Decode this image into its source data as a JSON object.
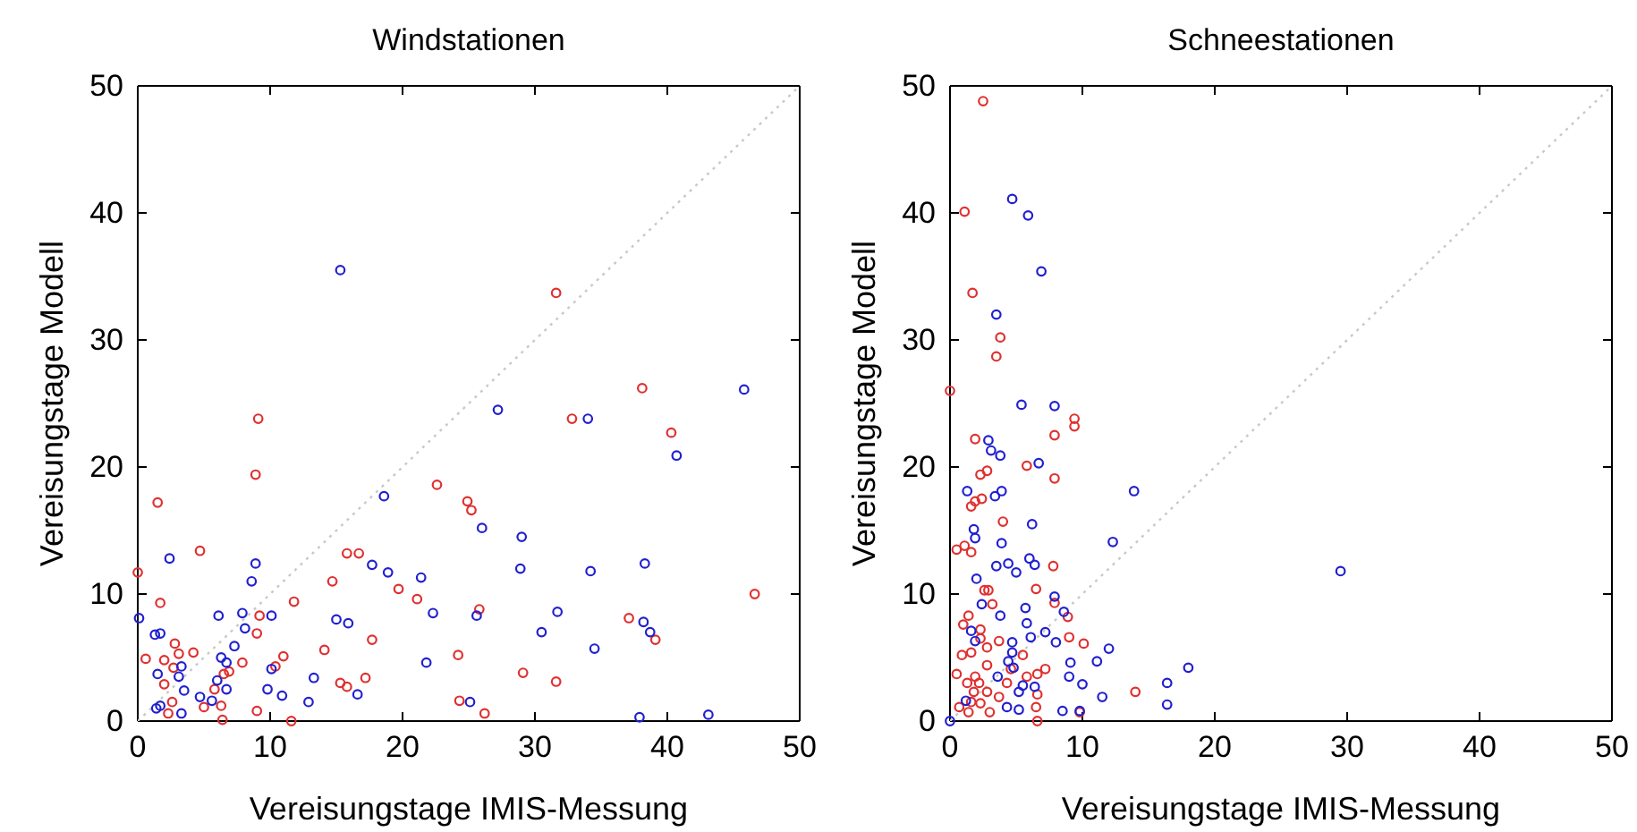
{
  "chart_data": [
    {
      "type": "scatter",
      "title": "Windstationen",
      "xlabel": "Vereisungstage IMIS-Messung",
      "ylabel": "Vereisungstage Modell",
      "xlim": [
        0,
        50
      ],
      "ylim": [
        0,
        50
      ],
      "xticks": [
        0,
        10,
        20,
        30,
        40,
        50
      ],
      "yticks": [
        0,
        10,
        20,
        30,
        40,
        50
      ],
      "series": [
        {
          "type": "line",
          "color": "#c8c8c8",
          "line_style": "dotted",
          "marker": "none",
          "x": [
            0,
            50
          ],
          "values": [
            0,
            50
          ]
        },
        {
          "color": "#e03030",
          "marker": "circle",
          "x": [
            31.6,
            38.1,
            9.1,
            32.8,
            40.3,
            8.9,
            1.5,
            22.6,
            24.9,
            25.2,
            4.7,
            15.8,
            16.7,
            0,
            14.7,
            19.7,
            21.1,
            46.6,
            1.7,
            11.8,
            25.8,
            9.2,
            37.1,
            39.1,
            9.0,
            17.7,
            2.8,
            14.1,
            0.6,
            2.0,
            3.1,
            4.2,
            7.9,
            11.0,
            24.2,
            2.7,
            6.9,
            6.5,
            10.4,
            29.1,
            17.2,
            2.0,
            15.3,
            15.8,
            5.8,
            31.6,
            2.6,
            24.3,
            5.0,
            6.3,
            9.0,
            2.3,
            26.2,
            6.4,
            11.6
          ],
          "values": [
            33.7,
            26.2,
            23.8,
            23.8,
            22.7,
            19.4,
            17.2,
            18.6,
            17.3,
            16.6,
            13.4,
            13.2,
            13.2,
            11.7,
            11.0,
            10.4,
            9.6,
            10.0,
            9.3,
            9.4,
            8.8,
            8.3,
            8.1,
            6.4,
            6.9,
            6.4,
            6.1,
            5.6,
            4.9,
            4.8,
            5.3,
            5.4,
            4.6,
            5.1,
            5.2,
            4.2,
            3.9,
            3.7,
            4.3,
            3.8,
            3.4,
            2.9,
            3.0,
            2.7,
            2.5,
            3.1,
            1.5,
            1.6,
            1.1,
            1.2,
            0.8,
            0.6,
            0.6,
            0.1,
            0
          ]
        },
        {
          "color": "#2020d0",
          "marker": "circle",
          "x": [
            15.3,
            45.8,
            27.2,
            34.0,
            40.7,
            18.6,
            26.0,
            29.0,
            2.4,
            8.9,
            17.7,
            18.9,
            28.9,
            34.2,
            38.3,
            8.6,
            21.4,
            25.6,
            22.3,
            31.7,
            0.1,
            6.1,
            7.9,
            10.1,
            15.0,
            15.9,
            8.1,
            38.2,
            38.7,
            30.5,
            1.3,
            1.7,
            7.3,
            34.5,
            6.3,
            6.7,
            21.8,
            3.3,
            1.5,
            3.1,
            10.1,
            13.3,
            6.0,
            3.5,
            6.7,
            9.8,
            16.6,
            4.7,
            5.6,
            10.9,
            12.9,
            25.1,
            1.4,
            1.7,
            3.3,
            37.9,
            43.1
          ],
          "values": [
            35.5,
            26.1,
            24.5,
            23.8,
            20.9,
            17.7,
            15.2,
            14.5,
            12.8,
            12.4,
            12.3,
            11.7,
            12.0,
            11.8,
            12.4,
            11.0,
            11.3,
            8.3,
            8.5,
            8.6,
            8.1,
            8.3,
            8.5,
            8.3,
            8.0,
            7.7,
            7.3,
            7.8,
            7.0,
            7.0,
            6.8,
            6.9,
            5.9,
            5.7,
            5.0,
            4.6,
            4.6,
            4.3,
            3.7,
            3.5,
            4.1,
            3.4,
            3.2,
            2.4,
            2.5,
            2.5,
            2.1,
            1.9,
            1.6,
            2.0,
            1.5,
            1.5,
            1.0,
            1.2,
            0.6,
            0.3,
            0.5
          ]
        }
      ]
    },
    {
      "type": "scatter",
      "title": "Schneestationen",
      "xlabel": "Vereisungstage IMIS-Messung",
      "ylabel": "Vereisungstage Modell",
      "xlim": [
        0,
        50
      ],
      "ylim": [
        0,
        50
      ],
      "xticks": [
        0,
        10,
        20,
        30,
        40,
        50
      ],
      "yticks": [
        0,
        10,
        20,
        30,
        40,
        50
      ],
      "series": [
        {
          "type": "line",
          "color": "#c8c8c8",
          "line_style": "dotted",
          "marker": "none",
          "x": [
            0,
            50
          ],
          "values": [
            0,
            50
          ]
        },
        {
          "color": "#e03030",
          "marker": "circle",
          "x": [
            2.5,
            1.1,
            1.7,
            3.8,
            3.5,
            0,
            9.4,
            9.4,
            1.9,
            7.9,
            5.8,
            2.8,
            2.3,
            7.9,
            1.9,
            1.6,
            2.4,
            4.0,
            0.5,
            1.1,
            1.6,
            7.8,
            2.6,
            2.9,
            6.5,
            3.2,
            7.9,
            8.9,
            1.4,
            1.0,
            2.3,
            2.3,
            9.0,
            3.7,
            10.1,
            2.8,
            0.9,
            1.6,
            5.5,
            7.2,
            2.8,
            4.6,
            0.5,
            1.9,
            5.8,
            6.6,
            1.3,
            2.2,
            4.3,
            14.0,
            1.8,
            2.8,
            3.7,
            6.6,
            0.7,
            1.6,
            2.3,
            6.5,
            9.8,
            1.4,
            3.0,
            6.6
          ],
          "values": [
            48.8,
            40.1,
            33.7,
            30.2,
            28.7,
            26.0,
            23.8,
            23.2,
            22.2,
            22.5,
            20.1,
            19.7,
            19.4,
            19.1,
            17.3,
            16.9,
            17.5,
            15.7,
            13.5,
            13.8,
            13.3,
            12.2,
            10.3,
            10.3,
            10.4,
            9.2,
            9.3,
            8.2,
            8.3,
            7.6,
            7.2,
            6.5,
            6.6,
            6.3,
            6.1,
            5.8,
            5.2,
            5.4,
            5.2,
            4.1,
            4.4,
            4.1,
            3.7,
            3.5,
            3.5,
            3.7,
            3.0,
            3.0,
            3.0,
            2.3,
            2.3,
            2.3,
            1.9,
            2.1,
            1.1,
            1.5,
            1.4,
            1.1,
            0.7,
            0.7,
            0.7,
            0
          ]
        },
        {
          "color": "#2020d0",
          "marker": "circle",
          "x": [
            4.7,
            5.9,
            6.9,
            3.5,
            5.4,
            7.9,
            2.9,
            3.1,
            3.8,
            6.7,
            1.3,
            3.4,
            3.9,
            13.9,
            6.2,
            1.8,
            1.9,
            3.9,
            12.3,
            6.0,
            6.4,
            3.5,
            4.4,
            5.0,
            2.0,
            2.4,
            7.9,
            5.7,
            8.6,
            3.8,
            5.8,
            1.6,
            7.2,
            6.1,
            1.9,
            4.7,
            8.0,
            4.7,
            4.4,
            9.1,
            11.1,
            12.0,
            4.8,
            3.6,
            9.0,
            5.5,
            6.4,
            10.0,
            16.4,
            5.2,
            11.5,
            16.4,
            1.2,
            4.3,
            5.2,
            8.5,
            9.8,
            0,
            29.5,
            18.0
          ],
          "values": [
            41.1,
            39.8,
            35.4,
            32.0,
            24.9,
            24.8,
            22.1,
            21.3,
            20.9,
            20.3,
            18.1,
            17.7,
            18.1,
            18.1,
            15.5,
            15.1,
            14.4,
            14.0,
            14.1,
            12.8,
            12.3,
            12.2,
            12.4,
            11.7,
            11.2,
            9.2,
            9.8,
            8.9,
            8.6,
            8.3,
            7.7,
            7.1,
            7.0,
            6.6,
            6.3,
            6.2,
            6.2,
            5.4,
            4.7,
            4.6,
            4.7,
            5.7,
            4.2,
            3.5,
            3.5,
            2.8,
            2.7,
            2.9,
            3.0,
            2.3,
            1.9,
            1.3,
            1.6,
            1.1,
            0.9,
            0.8,
            0.8,
            0,
            11.8,
            4.2
          ]
        }
      ]
    }
  ]
}
